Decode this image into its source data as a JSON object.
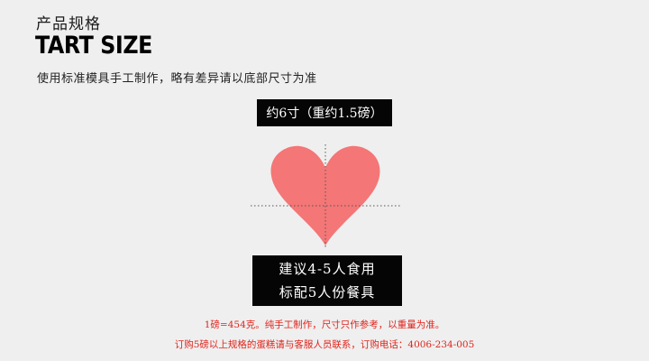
{
  "header": {
    "title_cn": "产品规格",
    "title_en": "TART SIZE",
    "note": "使用标准模具手工制作，略有差异请以底部尺寸为准"
  },
  "size": {
    "label": "约6寸（重约1.5磅）"
  },
  "heart": {
    "icon": "heart-icon",
    "color": "#f47676"
  },
  "serving": {
    "line1": "建议4-5人食用",
    "line2": "标配5人份餐具"
  },
  "footer": {
    "line1": "1磅=454克。纯手工制作，尺寸只作参考，以重量为准。",
    "line2": "订购5磅以上规格的蛋糕请与客服人员联系，订购电话：4006-234-005"
  },
  "colors": {
    "background": "#efefef",
    "box": "#050505",
    "footer_text": "#e0241c"
  }
}
